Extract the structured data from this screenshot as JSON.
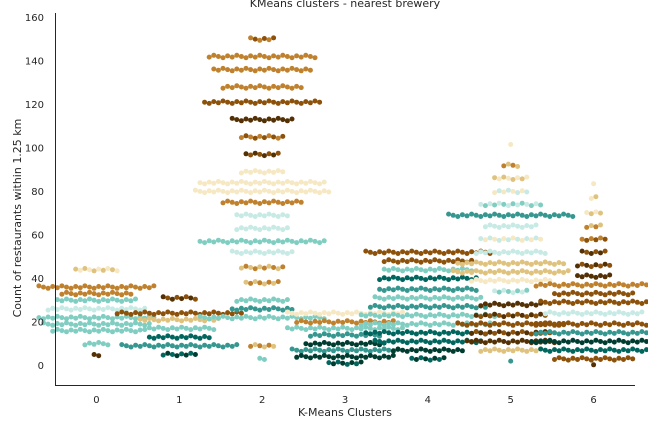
{
  "chart_data": {
    "type": "scatter",
    "subtype": "swarm",
    "title": "KMeans clusters - nearest brewery",
    "xlabel": "K-Means Clusters",
    "ylabel": "Count of restaurants within 1.25 km",
    "categories": [
      "0",
      "1",
      "2",
      "3",
      "4",
      "5",
      "6"
    ],
    "ylim": [
      -9,
      162
    ],
    "yticks": [
      0,
      20,
      40,
      60,
      80,
      100,
      120,
      140,
      160
    ],
    "grid": false,
    "legend": "none",
    "palette": [
      "#543005",
      "#8c510a",
      "#bf812d",
      "#dfc27d",
      "#f6e8c3",
      "#c7eae5",
      "#80cdc1",
      "#35978f",
      "#01665e",
      "#003c30"
    ],
    "clusters": [
      {
        "category": "0",
        "groups": [
          {
            "y": 36,
            "n": 26,
            "colors": [
              2,
              3,
              4
            ]
          },
          {
            "y": 33,
            "n": 16,
            "colors": [
              1,
              2,
              0
            ]
          },
          {
            "y": 30,
            "n": 18,
            "colors": [
              8,
              7,
              6
            ]
          },
          {
            "y": 26,
            "n": 22,
            "colors": [
              5,
              6,
              7
            ]
          },
          {
            "y": 22,
            "n": 26,
            "colors": [
              8,
              6,
              5
            ]
          },
          {
            "y": 19,
            "n": 24,
            "colors": [
              7,
              5,
              6
            ]
          },
          {
            "y": 16,
            "n": 20,
            "colors": [
              6,
              7,
              8
            ]
          },
          {
            "y": 44,
            "n": 10,
            "colors": [
              4,
              3
            ]
          },
          {
            "y": 10,
            "n": 6,
            "colors": [
              1,
              0,
              6
            ]
          },
          {
            "y": 5,
            "n": 2,
            "colors": [
              0
            ]
          }
        ]
      },
      {
        "category": "1",
        "groups": [
          {
            "y": 31,
            "n": 8,
            "colors": [
              0,
              1
            ]
          },
          {
            "y": 24,
            "n": 28,
            "colors": [
              0,
              1,
              2
            ]
          },
          {
            "y": 21,
            "n": 18,
            "colors": [
              7,
              8,
              3
            ]
          },
          {
            "y": 17,
            "n": 16,
            "colors": [
              6,
              8,
              7
            ]
          },
          {
            "y": 13,
            "n": 14,
            "colors": [
              7,
              8,
              5
            ]
          },
          {
            "y": 9,
            "n": 26,
            "colors": [
              8,
              9,
              7
            ]
          },
          {
            "y": 5,
            "n": 8,
            "colors": [
              8,
              9
            ]
          }
        ]
      },
      {
        "category": "2",
        "groups": [
          {
            "y": 150,
            "n": 6,
            "colors": [
              2,
              1
            ]
          },
          {
            "y": 142,
            "n": 24,
            "colors": [
              1,
              2,
              0
            ]
          },
          {
            "y": 136,
            "n": 22,
            "colors": [
              1,
              0,
              2
            ]
          },
          {
            "y": 128,
            "n": 18,
            "colors": [
              2,
              1,
              0
            ]
          },
          {
            "y": 121,
            "n": 26,
            "colors": [
              0,
              1,
              2
            ]
          },
          {
            "y": 113,
            "n": 14,
            "colors": [
              1,
              2,
              0
            ]
          },
          {
            "y": 105,
            "n": 10,
            "colors": [
              2,
              1
            ]
          },
          {
            "y": 97,
            "n": 8,
            "colors": [
              1,
              0
            ]
          },
          {
            "y": 89,
            "n": 10,
            "colors": [
              3,
              2,
              4
            ]
          },
          {
            "y": 84,
            "n": 28,
            "colors": [
              4,
              3,
              2
            ]
          },
          {
            "y": 80,
            "n": 30,
            "colors": [
              3,
              4,
              5
            ]
          },
          {
            "y": 75,
            "n": 18,
            "colors": [
              4,
              3,
              2
            ]
          },
          {
            "y": 69,
            "n": 12,
            "colors": [
              5,
              4,
              8
            ]
          },
          {
            "y": 63,
            "n": 12,
            "colors": [
              6,
              5,
              2
            ]
          },
          {
            "y": 57,
            "n": 28,
            "colors": [
              0,
              1,
              6
            ]
          },
          {
            "y": 52,
            "n": 14,
            "colors": [
              5,
              6,
              3
            ]
          },
          {
            "y": 45,
            "n": 10,
            "colors": [
              3,
              2
            ]
          },
          {
            "y": 38,
            "n": 8,
            "colors": [
              2,
              3
            ]
          },
          {
            "y": 30,
            "n": 12,
            "colors": [
              6,
              5,
              7
            ]
          },
          {
            "y": 26,
            "n": 14,
            "colors": [
              6,
              7,
              3
            ]
          },
          {
            "y": 22,
            "n": 28,
            "colors": [
              7,
              8,
              6
            ]
          },
          {
            "y": 9,
            "n": 6,
            "colors": [
              3,
              2
            ]
          },
          {
            "y": 3,
            "n": 2,
            "colors": [
              6
            ]
          }
        ]
      },
      {
        "category": "3",
        "groups": [
          {
            "y": 24,
            "n": 26,
            "colors": [
              4,
              3,
              5
            ]
          },
          {
            "y": 20,
            "n": 22,
            "colors": [
              3,
              2,
              5
            ]
          },
          {
            "y": 17,
            "n": 26,
            "colors": [
              8,
              0,
              6
            ]
          },
          {
            "y": 14,
            "n": 16,
            "colors": [
              7,
              6,
              3
            ]
          },
          {
            "y": 10,
            "n": 18,
            "colors": [
              8,
              9,
              7
            ]
          },
          {
            "y": 7,
            "n": 24,
            "colors": [
              9,
              8,
              7
            ]
          },
          {
            "y": 4,
            "n": 22,
            "colors": [
              9,
              8,
              7
            ]
          },
          {
            "y": 1,
            "n": 8,
            "colors": [
              9,
              8
            ]
          }
        ]
      },
      {
        "category": "4",
        "groups": [
          {
            "y": 52,
            "n": 28,
            "colors": [
              1,
              2,
              0
            ]
          },
          {
            "y": 48,
            "n": 20,
            "colors": [
              0,
              1,
              8
            ]
          },
          {
            "y": 44,
            "n": 20,
            "colors": [
              1,
              0,
              6
            ]
          },
          {
            "y": 40,
            "n": 22,
            "colors": [
              8,
              6,
              0
            ]
          },
          {
            "y": 35,
            "n": 22,
            "colors": [
              6,
              7,
              8
            ]
          },
          {
            "y": 31,
            "n": 24,
            "colors": [
              8,
              7,
              6
            ]
          },
          {
            "y": 27,
            "n": 26,
            "colors": [
              7,
              8,
              6
            ]
          },
          {
            "y": 23,
            "n": 30,
            "colors": [
              8,
              6,
              7
            ]
          },
          {
            "y": 19,
            "n": 30,
            "colors": [
              7,
              8,
              6
            ]
          },
          {
            "y": 15,
            "n": 28,
            "colors": [
              8,
              7,
              9
            ]
          },
          {
            "y": 11,
            "n": 24,
            "colors": [
              9,
              8,
              6
            ]
          },
          {
            "y": 7,
            "n": 16,
            "colors": [
              8,
              7,
              9
            ]
          },
          {
            "y": 3,
            "n": 8,
            "colors": [
              8,
              9
            ]
          }
        ]
      },
      {
        "category": "5",
        "groups": [
          {
            "y": 101,
            "n": 1,
            "colors": [
              4
            ]
          },
          {
            "y": 92,
            "n": 4,
            "colors": [
              3,
              2
            ]
          },
          {
            "y": 86,
            "n": 8,
            "colors": [
              3,
              4
            ]
          },
          {
            "y": 80,
            "n": 8,
            "colors": [
              5,
              4
            ]
          },
          {
            "y": 74,
            "n": 14,
            "colors": [
              5,
              6
            ]
          },
          {
            "y": 69,
            "n": 28,
            "colors": [
              6,
              5,
              7
            ]
          },
          {
            "y": 64,
            "n": 12,
            "colors": [
              5,
              4,
              0
            ]
          },
          {
            "y": 58,
            "n": 14,
            "colors": [
              4,
              5
            ]
          },
          {
            "y": 52,
            "n": 16,
            "colors": [
              4,
              3,
              5
            ]
          },
          {
            "y": 47,
            "n": 24,
            "colors": [
              3,
              4,
              2
            ]
          },
          {
            "y": 43,
            "n": 26,
            "colors": [
              4,
              3,
              2
            ]
          },
          {
            "y": 39,
            "n": 18,
            "colors": [
              3,
              2,
              4
            ]
          },
          {
            "y": 34,
            "n": 8,
            "colors": [
              5,
              6
            ]
          },
          {
            "y": 28,
            "n": 14,
            "colors": [
              1,
              0,
              2
            ]
          },
          {
            "y": 23,
            "n": 16,
            "colors": [
              0,
              1
            ]
          },
          {
            "y": 19,
            "n": 24,
            "colors": [
              1,
              0,
              2
            ]
          },
          {
            "y": 15,
            "n": 18,
            "colors": [
              0,
              1
            ]
          },
          {
            "y": 11,
            "n": 20,
            "colors": [
              1,
              2,
              0
            ]
          },
          {
            "y": 7,
            "n": 14,
            "colors": [
              3,
              2,
              5
            ]
          },
          {
            "y": 2,
            "n": 1,
            "colors": [
              7
            ]
          }
        ]
      },
      {
        "category": "6",
        "groups": [
          {
            "y": 83,
            "n": 1,
            "colors": [
              4
            ]
          },
          {
            "y": 77,
            "n": 2,
            "colors": [
              3,
              4
            ]
          },
          {
            "y": 70,
            "n": 4,
            "colors": [
              4,
              3
            ]
          },
          {
            "y": 64,
            "n": 4,
            "colors": [
              3,
              2
            ]
          },
          {
            "y": 58,
            "n": 6,
            "colors": [
              2,
              1
            ]
          },
          {
            "y": 52,
            "n": 6,
            "colors": [
              1,
              0
            ]
          },
          {
            "y": 46,
            "n": 8,
            "colors": [
              0,
              1
            ]
          },
          {
            "y": 41,
            "n": 8,
            "colors": [
              1,
              0,
              2
            ]
          },
          {
            "y": 37,
            "n": 26,
            "colors": [
              0,
              1,
              2
            ]
          },
          {
            "y": 33,
            "n": 18,
            "colors": [
              1,
              0,
              3
            ]
          },
          {
            "y": 29,
            "n": 24,
            "colors": [
              0,
              1,
              2
            ]
          },
          {
            "y": 24,
            "n": 22,
            "colors": [
              7,
              6,
              5
            ]
          },
          {
            "y": 19,
            "n": 26,
            "colors": [
              1,
              0,
              7
            ]
          },
          {
            "y": 15,
            "n": 26,
            "colors": [
              8,
              7,
              6
            ]
          },
          {
            "y": 11,
            "n": 28,
            "colors": [
              7,
              8,
              9
            ]
          },
          {
            "y": 7,
            "n": 24,
            "colors": [
              8,
              7,
              9
            ]
          },
          {
            "y": 3,
            "n": 18,
            "colors": [
              0,
              1,
              8
            ]
          },
          {
            "y": 0,
            "n": 1,
            "colors": [
              0
            ]
          }
        ]
      }
    ]
  }
}
